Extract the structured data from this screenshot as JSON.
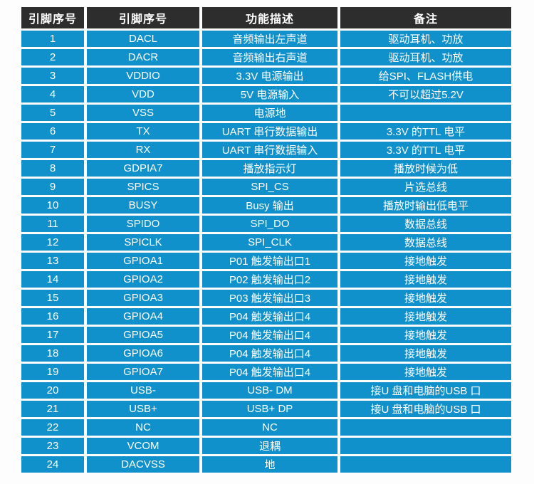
{
  "table": {
    "headers": [
      "引脚序号",
      "引脚序号",
      "功能描述",
      "备注"
    ],
    "rows": [
      [
        "1",
        "DACL",
        "音频输出左声道",
        "驱动耳机、功放"
      ],
      [
        "2",
        "DACR",
        "音频输出右声道",
        "驱动耳机、功放"
      ],
      [
        "3",
        "VDDIO",
        "3.3V 电源输出",
        "给SPI、FLASH供电"
      ],
      [
        "4",
        "VDD",
        "5V 电源输入",
        "不可以超过5.2V"
      ],
      [
        "5",
        "VSS",
        "电源地",
        ""
      ],
      [
        "6",
        "TX",
        "UART 串行数据输出",
        "3.3V 的TTL 电平"
      ],
      [
        "7",
        "RX",
        "UART 串行数据输入",
        "3.3V 的TTL 电平"
      ],
      [
        "8",
        "GDPIA7",
        "播放指示灯",
        "播放时候为低"
      ],
      [
        "9",
        "SPICS",
        "SPI_CS",
        "片选总线"
      ],
      [
        "10",
        "BUSY",
        "Busy 输出",
        "播放时输出低电平"
      ],
      [
        "11",
        "SPIDO",
        "SPI_DO",
        "数据总线"
      ],
      [
        "12",
        "SPICLK",
        "SPI_CLK",
        "数据总线"
      ],
      [
        "13",
        "GPIOA1",
        "P01 触发输出口1",
        "接地触发"
      ],
      [
        "14",
        "GPIOA2",
        "P02 触发输出口2",
        "接地触发"
      ],
      [
        "15",
        "GPIOA3",
        "P03 触发输出口3",
        "接地触发"
      ],
      [
        "16",
        "GPIOA4",
        "P04 触发输出口4",
        "接地触发"
      ],
      [
        "17",
        "GPIOA5",
        "P04 触发输出口4",
        "接地触发"
      ],
      [
        "18",
        "GPIOA6",
        "P04 触发输出口4",
        "接地触发"
      ],
      [
        "19",
        "GPIOA7",
        "P04 触发输出口4",
        "接地触发"
      ],
      [
        "20",
        "USB-",
        "USB- DM",
        "接U 盘和电脑的USB 口"
      ],
      [
        "21",
        "USB+",
        "USB+ DP",
        "接U 盘和电脑的USB 口"
      ],
      [
        "22",
        "NC",
        "NC",
        ""
      ],
      [
        "23",
        "VCOM",
        "退耦",
        ""
      ],
      [
        "24",
        "DACVSS",
        "地",
        ""
      ]
    ],
    "colors": {
      "header_bg": "#2d2d2d",
      "row_bg": "#1191cb",
      "text": "#ffffff",
      "page_bg": "#fdfdfd"
    }
  }
}
